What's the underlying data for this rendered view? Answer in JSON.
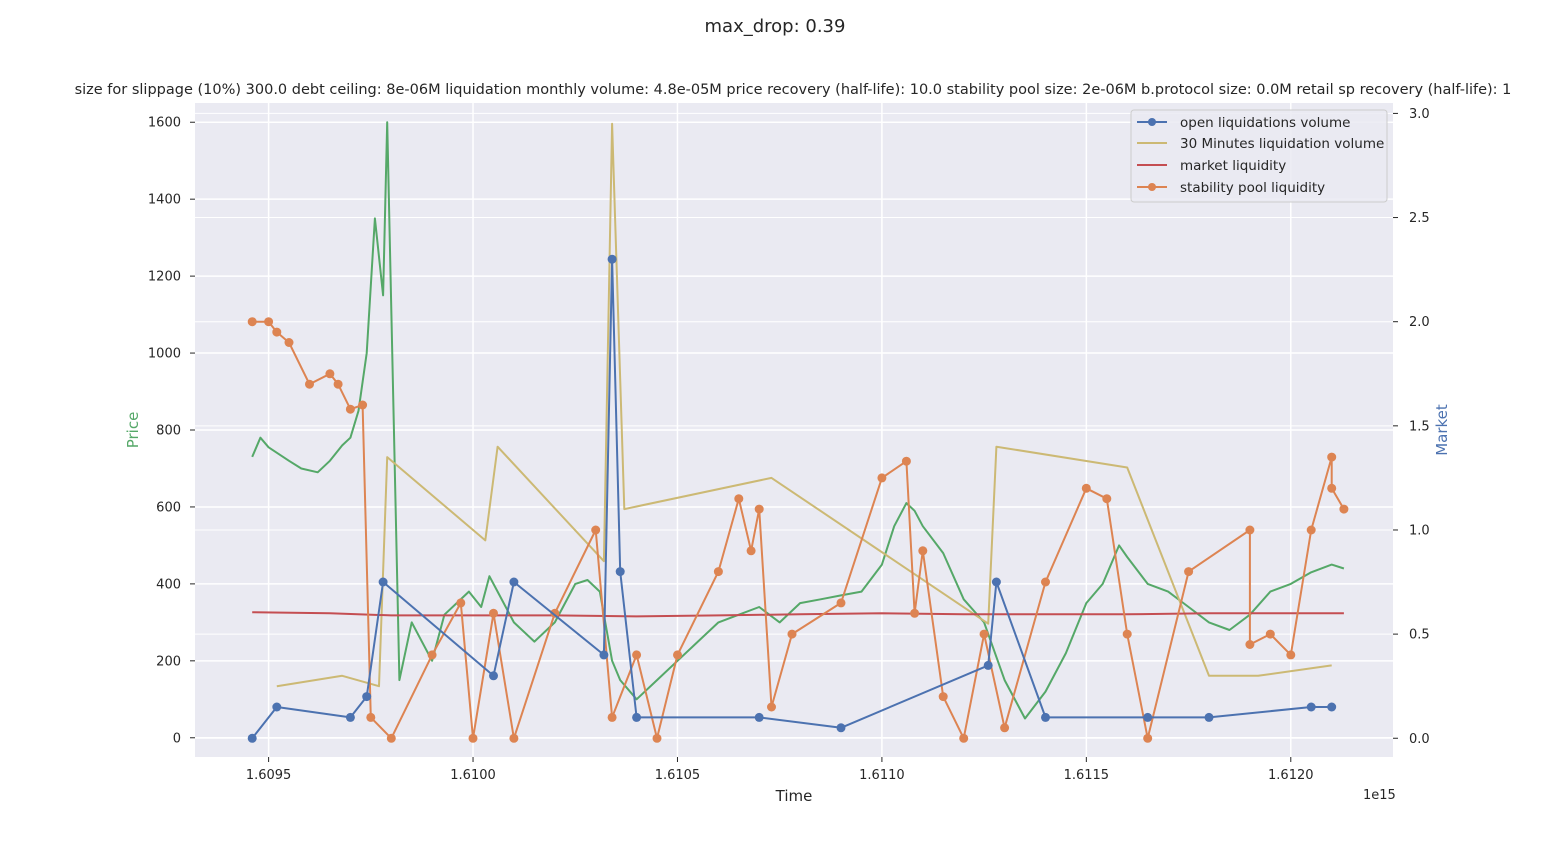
{
  "chart_data": {
    "type": "line",
    "suptitle": "max_drop: 0.39",
    "title": "size for slippage (10%) 300.0 debt ceiling: 8e-06M liquidation monthly volume: 4.8e-05M price recovery (half-life): 10.0 stability pool size: 2e-06M b.protocol size: 0.0M retail sp recovery (half-life): 1",
    "xlabel": "Time",
    "ylabel_left": "Price",
    "ylabel_right": "Market",
    "x_offset_label": "1e15",
    "xlim": [
      1.60932,
      1.61225
    ],
    "ylim_left": [
      -50,
      1650
    ],
    "ylim_right": [
      -0.09,
      3.05
    ],
    "x_ticks": [
      "1.6095",
      "1.6100",
      "1.6105",
      "1.6110",
      "1.6115",
      "1.6120"
    ],
    "x_tick_values": [
      1.6095,
      1.61,
      1.6105,
      1.611,
      1.6115,
      1.612
    ],
    "y_left_ticks": [
      "0",
      "200",
      "400",
      "600",
      "800",
      "1000",
      "1200",
      "1400",
      "1600"
    ],
    "y_left_tick_values": [
      0,
      200,
      400,
      600,
      800,
      1000,
      1200,
      1400,
      1600
    ],
    "y_right_ticks": [
      "0.0",
      "0.5",
      "1.0",
      "1.5",
      "2.0",
      "2.5",
      "3.0"
    ],
    "y_right_tick_values": [
      0,
      0.5,
      1,
      1.5,
      2,
      2.5,
      3
    ],
    "colors": {
      "price": "#55a868",
      "open_liq": "#4c72b0",
      "liq_30m": "#ccb974",
      "market_liq": "#c44e52",
      "sp_liq": "#dd8452",
      "plot_bg": "#eaeaf2",
      "grid": "#ffffff"
    },
    "grid": true,
    "legend_position": "top-right",
    "series": [
      {
        "name": "Price",
        "axis": "left",
        "color": "#55a868",
        "x": [
          1.60946,
          1.60948,
          1.6095,
          1.60955,
          1.60958,
          1.60962,
          1.60965,
          1.60968,
          1.6097,
          1.60972,
          1.60974,
          1.60976,
          1.60978,
          1.60979,
          1.60982,
          1.60985,
          1.6099,
          1.60993,
          1.60996,
          1.60999,
          1.61002,
          1.61004,
          1.61006,
          1.6101,
          1.61015,
          1.6102,
          1.61025,
          1.61028,
          1.61031,
          1.61034,
          1.61036,
          1.6104,
          1.61045,
          1.6105,
          1.61055,
          1.6106,
          1.61065,
          1.6107,
          1.61075,
          1.6108,
          1.61085,
          1.6109,
          1.61095,
          1.611,
          1.61103,
          1.61106,
          1.61108,
          1.6111,
          1.61115,
          1.6112,
          1.61125,
          1.6113,
          1.61135,
          1.6114,
          1.61145,
          1.6115,
          1.61154,
          1.61158,
          1.6116,
          1.61165,
          1.6117,
          1.61175,
          1.6118,
          1.61185,
          1.6119,
          1.61195,
          1.612,
          1.61205,
          1.6121,
          1.61213
        ],
        "values": [
          730,
          780,
          755,
          720,
          700,
          690,
          720,
          760,
          780,
          850,
          1000,
          1350,
          1150,
          1600,
          150,
          300,
          200,
          320,
          350,
          380,
          340,
          420,
          380,
          300,
          250,
          300,
          400,
          410,
          380,
          200,
          150,
          100,
          150,
          200,
          250,
          300,
          320,
          340,
          300,
          350,
          360,
          370,
          380,
          450,
          550,
          610,
          590,
          550,
          480,
          360,
          300,
          150,
          50,
          120,
          220,
          350,
          400,
          500,
          470,
          400,
          380,
          340,
          300,
          280,
          320,
          380,
          400,
          430,
          450,
          440
        ]
      },
      {
        "name": "open liquidations volume",
        "axis": "right",
        "color": "#4c72b0",
        "x": [
          1.60946,
          1.60952,
          1.6097,
          1.60974,
          1.60978,
          1.61005,
          1.6101,
          1.61032,
          1.61034,
          1.61036,
          1.6104,
          1.6107,
          1.6109,
          1.61126,
          1.61128,
          1.6114,
          1.61165,
          1.6118,
          1.61205,
          1.6121
        ],
        "values": [
          0,
          0.15,
          0.1,
          0.2,
          0.75,
          0.3,
          0.75,
          0.4,
          2.3,
          0.8,
          0.1,
          0.1,
          0.05,
          0.35,
          0.75,
          0.1,
          0.1,
          0.1,
          0.15,
          0.15
        ]
      },
      {
        "name": "30 Minutes liquidation volume",
        "axis": "right",
        "color": "#ccb974",
        "x": [
          1.60952,
          1.60968,
          1.60977,
          1.60979,
          1.61003,
          1.61006,
          1.61032,
          1.61034,
          1.61037,
          1.61073,
          1.61126,
          1.61128,
          1.6116,
          1.6118,
          1.61192,
          1.6121
        ],
        "values": [
          0.25,
          0.3,
          0.25,
          1.35,
          0.95,
          1.4,
          0.85,
          2.95,
          1.1,
          1.25,
          0.55,
          1.4,
          1.3,
          0.3,
          0.3,
          0.35
        ]
      },
      {
        "name": "market liquidity",
        "axis": "right",
        "color": "#c44e52",
        "x": [
          1.60946,
          1.60965,
          1.6098,
          1.61,
          1.6102,
          1.6104,
          1.6106,
          1.6108,
          1.611,
          1.6112,
          1.6114,
          1.6116,
          1.6118,
          1.612,
          1.61213
        ],
        "values": [
          0.605,
          0.6,
          0.59,
          0.59,
          0.59,
          0.585,
          0.59,
          0.595,
          0.6,
          0.595,
          0.595,
          0.595,
          0.6,
          0.6,
          0.6
        ]
      },
      {
        "name": "stability pool liquidity",
        "axis": "right",
        "color": "#dd8452",
        "x": [
          1.60946,
          1.6095,
          1.60952,
          1.60955,
          1.6096,
          1.60965,
          1.60967,
          1.6097,
          1.60973,
          1.60975,
          1.6098,
          1.6099,
          1.60997,
          1.61,
          1.61005,
          1.6101,
          1.6102,
          1.6103,
          1.61034,
          1.6104,
          1.61045,
          1.6105,
          1.6106,
          1.61065,
          1.61068,
          1.6107,
          1.61073,
          1.61078,
          1.6109,
          1.611,
          1.61106,
          1.61108,
          1.6111,
          1.61115,
          1.6112,
          1.61125,
          1.6113,
          1.6114,
          1.6115,
          1.61155,
          1.6116,
          1.61165,
          1.61175,
          1.6119,
          1.6119,
          1.61195,
          1.612,
          1.61205,
          1.6121,
          1.6121,
          1.61213
        ],
        "values": [
          2.0,
          2.0,
          1.95,
          1.9,
          1.7,
          1.75,
          1.7,
          1.58,
          1.6,
          0.1,
          0.0,
          0.4,
          0.65,
          0.0,
          0.6,
          0.0,
          0.6,
          1.0,
          0.1,
          0.4,
          0.0,
          0.4,
          0.8,
          1.15,
          0.9,
          1.1,
          0.15,
          0.5,
          0.65,
          1.25,
          1.33,
          0.6,
          0.9,
          0.2,
          0.0,
          0.5,
          0.05,
          0.75,
          1.2,
          1.15,
          0.5,
          0.0,
          0.8,
          1.0,
          0.45,
          0.5,
          0.4,
          1.0,
          1.35,
          1.2,
          1.1
        ]
      }
    ]
  }
}
